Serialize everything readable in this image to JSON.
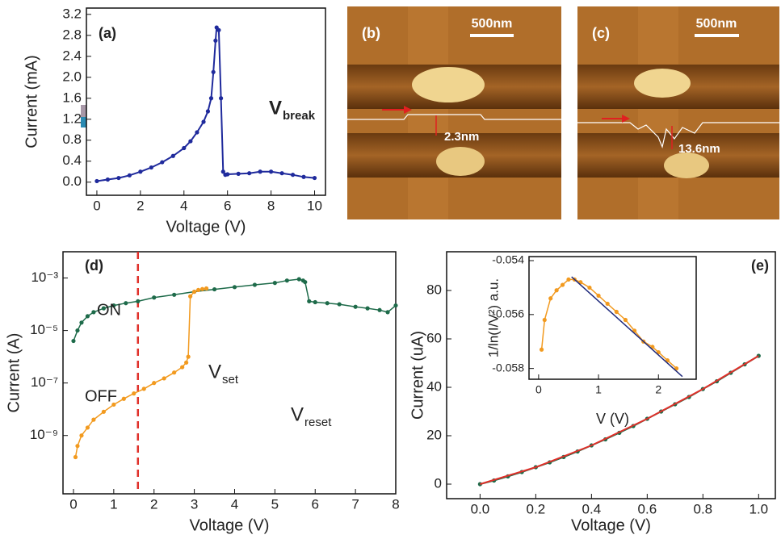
{
  "chart_data": [
    {
      "type": "line",
      "label": "(a)",
      "xlabel": "Voltage (V)",
      "ylabel": "Current (mA)",
      "xlim": [
        -0.48,
        10.5
      ],
      "ylim": [
        -0.25,
        3.32
      ],
      "xticks": [
        0,
        2,
        4,
        6,
        8,
        10
      ],
      "yticks": [
        {
          "value": 0,
          "label": "0.0"
        },
        0.4,
        0.8,
        1.2,
        1.6,
        {
          "value": 2,
          "label": "2.0"
        },
        2.4,
        2.8,
        3.2
      ],
      "annotations": [
        {
          "text": "V",
          "sub": "break"
        }
      ],
      "series": [
        {
          "color": "#1f2a9c",
          "markers": true,
          "x": [
            0,
            0.5,
            1,
            1.5,
            2,
            2.5,
            3,
            3.5,
            4,
            4.3,
            4.6,
            4.9,
            5.1,
            5.25,
            5.35,
            5.45,
            5.5,
            5.6,
            5.7,
            5.8,
            5.9,
            6,
            6.5,
            7,
            7.5,
            8,
            8.5,
            9,
            9.5,
            10
          ],
          "values": [
            0.02,
            0.05,
            0.08,
            0.13,
            0.2,
            0.28,
            0.38,
            0.5,
            0.65,
            0.78,
            0.95,
            1.15,
            1.35,
            1.6,
            2.1,
            2.7,
            2.95,
            2.9,
            1.6,
            0.2,
            0.14,
            0.15,
            0.16,
            0.17,
            0.2,
            0.2,
            0.17,
            0.14,
            0.1,
            0.08
          ]
        }
      ]
    },
    {
      "type": "image",
      "label": "(b)",
      "scale_bar": "500nm",
      "annotation": "2.3nm"
    },
    {
      "type": "image",
      "label": "(c)",
      "scale_bar": "500nm",
      "annotation": "13.6nm"
    },
    {
      "type": "line",
      "label": "(d)",
      "xlabel": "Voltage (V)",
      "ylabel": "Current (A)",
      "log_y": true,
      "xlim": [
        -0.26,
        8
      ],
      "ylim": [
        6e-12,
        0.01
      ],
      "xticks": [
        0,
        1,
        2,
        3,
        4,
        5,
        6,
        7,
        8
      ],
      "yticks": [
        {
          "value": 0.001,
          "label": "10⁻³"
        },
        {
          "value": 1e-05,
          "label": "10⁻⁵"
        },
        {
          "value": 1e-07,
          "label": "10⁻⁷"
        },
        {
          "value": 1e-09,
          "label": "10⁻⁹"
        }
      ],
      "vline": 1.6,
      "annotations": [
        {
          "text": "V",
          "sub": "set"
        },
        {
          "text": "V",
          "sub": "reset"
        }
      ],
      "series": [
        {
          "name": "ON",
          "color": "#1e6b4a",
          "markers": true,
          "x": [
            0,
            0.1,
            0.2,
            0.35,
            0.5,
            0.75,
            1,
            1.3,
            1.6,
            2,
            2.5,
            3,
            3.5,
            4,
            4.5,
            5,
            5.3,
            5.6,
            5.7,
            5.75,
            5.85,
            6,
            6.3,
            6.6,
            7,
            7.3,
            7.6,
            7.8,
            8
          ],
          "values": [
            4e-06,
            1e-05,
            2e-05,
            3.5e-05,
            5e-05,
            7e-05,
            9e-05,
            0.00011,
            0.00013,
            0.00018,
            0.00023,
            0.0003,
            0.00037,
            0.00045,
            0.00055,
            0.00065,
            0.0008,
            0.0009,
            0.0008,
            0.0007,
            0.00013,
            0.00012,
            0.00011,
            0.0001,
            8e-05,
            7e-05,
            6e-05,
            5e-05,
            9e-05
          ]
        },
        {
          "name": "OFF",
          "color": "#f29a1f",
          "markers": true,
          "x": [
            0.05,
            0.1,
            0.2,
            0.35,
            0.5,
            0.75,
            1,
            1.25,
            1.5,
            1.75,
            2,
            2.25,
            2.5,
            2.7,
            2.8,
            2.85,
            2.9,
            3,
            3.1,
            3.2,
            3.3
          ],
          "values": [
            1.5e-10,
            4e-10,
            1e-09,
            2e-09,
            4e-09,
            8e-09,
            1.5e-08,
            2.5e-08,
            4e-08,
            6e-08,
            1e-07,
            1.5e-07,
            2.5e-07,
            4e-07,
            6e-07,
            1e-06,
            0.0002,
            0.0003,
            0.00035,
            0.00038,
            0.0004
          ]
        }
      ]
    },
    {
      "type": "line",
      "label": "(e)",
      "xlabel": "Voltage (V)",
      "ylabel": "Current (uA)",
      "xlim": [
        -0.12,
        1.06
      ],
      "ylim": [
        -6,
        96
      ],
      "xticks": [
        {
          "value": 0,
          "label": "0.0"
        },
        0.2,
        0.4,
        0.6,
        0.8,
        {
          "value": 1,
          "label": "1.0"
        }
      ],
      "yticks": [
        0,
        20,
        40,
        60,
        80
      ],
      "series": [
        {
          "color": "#1e6b4a",
          "markers": true,
          "x": [
            0,
            0.05,
            0.1,
            0.15,
            0.2,
            0.25,
            0.3,
            0.35,
            0.4,
            0.45,
            0.5,
            0.55,
            0.6,
            0.65,
            0.7,
            0.75,
            0.8,
            0.85,
            0.9,
            0.95,
            1
          ],
          "values": [
            0,
            1.5,
            3.2,
            5,
            7,
            9,
            11.2,
            13.5,
            16,
            18.5,
            21.2,
            24,
            27,
            30,
            33,
            36,
            39.3,
            42.5,
            46,
            49.5,
            53
          ]
        },
        {
          "color": "#e0302a",
          "markers": false,
          "x": [
            0,
            0.2,
            0.4,
            0.6,
            0.8,
            1
          ],
          "values": [
            0,
            7,
            16,
            27,
            39.3,
            53
          ]
        }
      ]
    },
    {
      "type": "line",
      "xlabel": "V (V)",
      "ylabel": "1/ln(I/V²) a.u.",
      "xlim": [
        -0.16,
        2.63
      ],
      "ylim": [
        -0.0584,
        -0.05385
      ],
      "xticks": [
        0,
        1,
        2
      ],
      "yticks": [
        -0.054,
        -0.056,
        -0.058
      ],
      "series": [
        {
          "color": "#f29a1f",
          "markers": true,
          "x": [
            0.05,
            0.1,
            0.2,
            0.3,
            0.4,
            0.5,
            0.6,
            0.7,
            0.85,
            1,
            1.15,
            1.3,
            1.45,
            1.6,
            1.75,
            1.9,
            2,
            2.15,
            2.3
          ],
          "values": [
            -0.0573,
            -0.0562,
            -0.0554,
            -0.0551,
            -0.0549,
            -0.0547,
            -0.0547,
            -0.0548,
            -0.055,
            -0.0553,
            -0.0556,
            -0.0559,
            -0.0562,
            -0.0566,
            -0.057,
            -0.0572,
            -0.0574,
            -0.0577,
            -0.058
          ]
        },
        {
          "color": "#1f2a7c",
          "markers": false,
          "x": [
            0.55,
            2.4
          ],
          "values": [
            -0.0546,
            -0.0583
          ]
        }
      ]
    }
  ]
}
